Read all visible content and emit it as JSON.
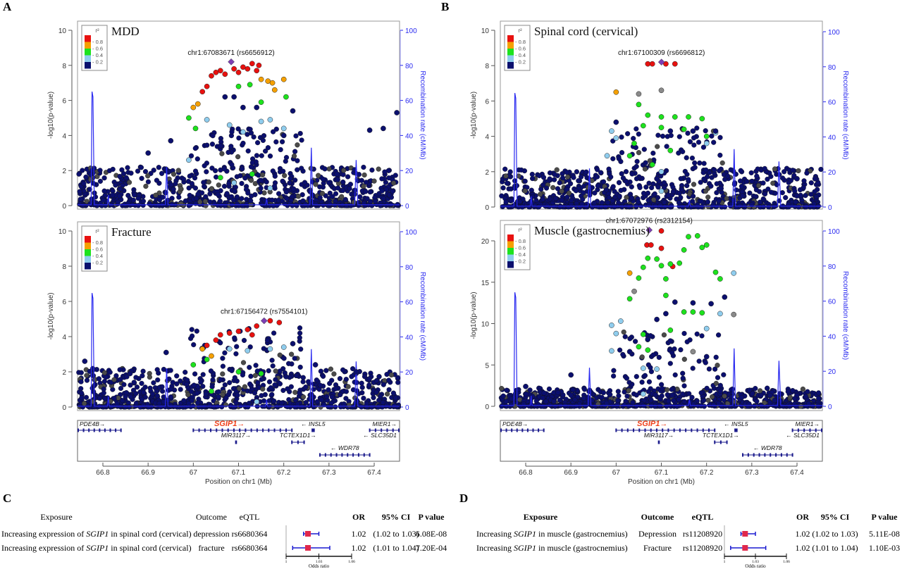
{
  "panel_letters": [
    "A",
    "B",
    "C",
    "D"
  ],
  "colors": {
    "r2_0.8-1": "#e8110f",
    "r2_0.6-0.8": "#f5a000",
    "r2_0.4-0.6": "#1de21d",
    "r2_0.2-0.4": "#8fcdee",
    "r2_0-0.2": "#0b0f6e",
    "r2_na": "#8a8a8a",
    "lead": "#7d3fb5",
    "recombination": "#2a2af0",
    "forest_box": "#e0284c",
    "forest_ci": "#1a1ad0",
    "gene": "#1b1b8c",
    "highlight_gene": "#f0401a"
  },
  "shared_axes": {
    "xlabel": "Position on chr1 (Mb)",
    "xticks": [
      "66.8",
      "66.9",
      "67",
      "67.1",
      "67.2",
      "67.3",
      "67.4"
    ],
    "xlim": [
      66.744,
      67.456
    ],
    "ylabel": "-log10(p-value)",
    "y2label": "Recombination rate (cM/Mb)",
    "y2ticks": [
      "0",
      "20",
      "40",
      "60",
      "80",
      "100"
    ],
    "legend_title": "r²",
    "legend_ticks": [
      "0.8",
      "0.6",
      "0.4",
      "0.2"
    ]
  },
  "gene_track": {
    "genes": [
      {
        "name": "PDE4B",
        "start": 66.744,
        "end": 66.84,
        "dir": "right",
        "row": 1,
        "highlight": false
      },
      {
        "name": "SGIP1",
        "start": 67.0,
        "end": 67.218,
        "dir": "right",
        "row": 1,
        "highlight": true
      },
      {
        "name": "INSL5",
        "start": 67.263,
        "end": 67.267,
        "dir": "left",
        "row": 1,
        "highlight": false
      },
      {
        "name": "MIER1",
        "start": 67.39,
        "end": 67.456,
        "dir": "right",
        "row": 1,
        "highlight": false
      },
      {
        "name": "MIR3117",
        "start": 67.094,
        "end": 67.095,
        "dir": "right",
        "row": 2,
        "highlight": false
      },
      {
        "name": "TCTEX1D1",
        "start": 67.218,
        "end": 67.245,
        "dir": "right",
        "row": 2,
        "highlight": false
      },
      {
        "name": "SLC35D1",
        "start": 67.456,
        "end": 67.456,
        "dir": "left",
        "row": 2,
        "highlight": false
      },
      {
        "name": "WDR78",
        "start": 67.28,
        "end": 67.39,
        "dir": "left",
        "row": 3,
        "highlight": false
      }
    ]
  },
  "chart_data": [
    {
      "type": "scatter",
      "panel": "A",
      "title": "MDD",
      "ylim": [
        0,
        10
      ],
      "yticks": [
        "0",
        "2",
        "4",
        "6",
        "8",
        "10"
      ],
      "y2lim": [
        0,
        100
      ],
      "lead_label": "chr1:67083671 (rs6656912)",
      "lead": [
        67.0837,
        8.2
      ],
      "points": [
        [
          67.04,
          7.4,
          "0.8-1"
        ],
        [
          67.05,
          7.6,
          "0.8-1"
        ],
        [
          67.06,
          7.7,
          "0.8-1"
        ],
        [
          67.07,
          7.5,
          "0.8-1"
        ],
        [
          67.09,
          7.8,
          "0.8-1"
        ],
        [
          67.1,
          7.6,
          "0.8-1"
        ],
        [
          67.11,
          7.9,
          "0.8-1"
        ],
        [
          67.12,
          7.8,
          "0.8-1"
        ],
        [
          67.13,
          8.1,
          "0.8-1"
        ],
        [
          67.14,
          7.7,
          "0.8-1"
        ],
        [
          67.145,
          8.0,
          "0.8-1"
        ],
        [
          67.02,
          6.5,
          "0.8-1"
        ],
        [
          67.03,
          6.8,
          "0.8-1"
        ],
        [
          67.15,
          7.2,
          "0.6-0.8"
        ],
        [
          67.165,
          7.1,
          "0.6-0.8"
        ],
        [
          67.175,
          7.0,
          "0.6-0.8"
        ],
        [
          67.2,
          7.2,
          "0.6-0.8"
        ],
        [
          67.18,
          6.6,
          "0.6-0.8"
        ],
        [
          67.0,
          5.6,
          "0.6-0.8"
        ],
        [
          67.01,
          5.8,
          "0.6-0.8"
        ],
        [
          66.99,
          5.0,
          "0.4-0.6"
        ],
        [
          67.005,
          4.4,
          "0.4-0.6"
        ],
        [
          67.1,
          6.8,
          "0.4-0.6"
        ],
        [
          67.125,
          6.9,
          "0.4-0.6"
        ],
        [
          67.15,
          5.9,
          "0.4-0.6"
        ],
        [
          67.205,
          6.2,
          "0.4-0.6"
        ],
        [
          67.06,
          1.6,
          "0.4-0.6"
        ],
        [
          67.13,
          1.8,
          "0.4-0.6"
        ],
        [
          67.03,
          4.9,
          "0.2-0.4"
        ],
        [
          67.08,
          4.6,
          "0.2-0.4"
        ],
        [
          67.11,
          4.2,
          "0.2-0.4"
        ],
        [
          67.15,
          4.8,
          "0.2-0.4"
        ],
        [
          67.17,
          4.9,
          "0.2-0.4"
        ],
        [
          67.2,
          4.4,
          "0.2-0.4"
        ],
        [
          66.99,
          2.6,
          "0.2-0.4"
        ],
        [
          67.09,
          1.3,
          "0.2-0.4"
        ],
        [
          67.17,
          1.0,
          "0.2-0.4"
        ],
        [
          67.07,
          6.2,
          "0-0.2"
        ],
        [
          67.09,
          6.2,
          "0-0.2"
        ],
        [
          67.11,
          5.6,
          "0-0.2"
        ],
        [
          67.14,
          5.6,
          "0-0.2"
        ],
        [
          67.22,
          5.4,
          "0-0.2"
        ],
        [
          66.95,
          3.7,
          "0-0.2"
        ],
        [
          66.9,
          3.0,
          "0-0.2"
        ],
        [
          67.39,
          4.3,
          "0-0.2"
        ],
        [
          67.42,
          4.4,
          "0-0.2"
        ],
        [
          67.45,
          5.3,
          "0-0.2"
        ],
        [
          67.2,
          4.0,
          "0-0.2"
        ]
      ]
    },
    {
      "type": "scatter",
      "panel": "A",
      "title": "Fracture",
      "ylim": [
        0,
        10
      ],
      "yticks": [
        "0",
        "2",
        "4",
        "6",
        "8",
        "10"
      ],
      "y2lim": [
        0,
        100
      ],
      "lead_label": "chr1:67156472 (rs7554101)",
      "lead": [
        67.1565,
        4.9
      ],
      "points": [
        [
          67.06,
          4.1,
          "0.8-1"
        ],
        [
          67.08,
          4.2,
          "0.8-1"
        ],
        [
          67.1,
          4.3,
          "0.8-1"
        ],
        [
          67.12,
          4.4,
          "0.8-1"
        ],
        [
          67.14,
          4.6,
          "0.8-1"
        ],
        [
          67.17,
          4.9,
          "0.8-1"
        ],
        [
          67.19,
          4.8,
          "0.8-1"
        ],
        [
          67.05,
          3.8,
          "0.8-1"
        ],
        [
          67.03,
          3.5,
          "0.8-1"
        ],
        [
          67.13,
          4.1,
          "0.8-1"
        ],
        [
          67.02,
          3.3,
          "0.6-0.8"
        ],
        [
          67.04,
          2.9,
          "0.6-0.8"
        ],
        [
          67.0,
          2.4,
          "0.4-0.6"
        ],
        [
          67.03,
          2.7,
          "0.4-0.6"
        ],
        [
          67.1,
          2.0,
          "0.4-0.6"
        ],
        [
          67.15,
          1.9,
          "0.4-0.6"
        ],
        [
          67.04,
          0.9,
          "0.4-0.6"
        ],
        [
          67.08,
          3.3,
          "0.2-0.4"
        ],
        [
          67.12,
          3.2,
          "0.2-0.4"
        ],
        [
          67.17,
          3.3,
          "0.2-0.4"
        ],
        [
          67.2,
          3.4,
          "0.2-0.4"
        ],
        [
          67.14,
          0.3,
          "0.2-0.4"
        ],
        [
          66.94,
          3.1,
          "0-0.2"
        ],
        [
          66.76,
          2.6,
          "0-0.2"
        ],
        [
          67.22,
          3.6,
          "0-0.2"
        ],
        [
          67.27,
          2.4,
          "0-0.2"
        ],
        [
          67.36,
          2.0,
          "0-0.2"
        ],
        [
          66.86,
          1.9,
          "0-0.2"
        ]
      ]
    },
    {
      "type": "scatter",
      "panel": "B",
      "title": "Spinal cord (cervical)",
      "ylim": [
        0,
        10
      ],
      "yticks": [
        "0",
        "2",
        "4",
        "6",
        "8",
        "10"
      ],
      "y2lim": [
        0,
        100
      ],
      "lead_label": "chr1:67100309 (rs6696812)",
      "lead": [
        67.1003,
        8.2
      ],
      "points": [
        [
          67.07,
          8.1,
          "0.8-1"
        ],
        [
          67.08,
          8.1,
          "0.8-1"
        ],
        [
          67.11,
          8.1,
          "0.8-1"
        ],
        [
          67.13,
          8.1,
          "0.8-1"
        ],
        [
          67.0,
          6.5,
          "0.6-0.8"
        ],
        [
          67.05,
          5.8,
          "0.4-0.6"
        ],
        [
          67.07,
          5.2,
          "0.4-0.6"
        ],
        [
          67.1,
          5.1,
          "0.4-0.6"
        ],
        [
          67.13,
          5.1,
          "0.4-0.6"
        ],
        [
          67.16,
          5.1,
          "0.4-0.6"
        ],
        [
          67.19,
          5.0,
          "0.4-0.6"
        ],
        [
          67.06,
          4.6,
          "0.4-0.6"
        ],
        [
          67.1,
          4.5,
          "0.4-0.6"
        ],
        [
          67.15,
          4.4,
          "0.4-0.6"
        ],
        [
          67.2,
          4.0,
          "0.4-0.6"
        ],
        [
          67.04,
          3.6,
          "0.4-0.6"
        ],
        [
          67.12,
          3.2,
          "0.4-0.6"
        ],
        [
          67.03,
          2.9,
          "0.4-0.6"
        ],
        [
          67.08,
          2.4,
          "0.4-0.6"
        ],
        [
          66.99,
          4.3,
          "0.2-0.4"
        ],
        [
          67.0,
          3.9,
          "0.2-0.4"
        ],
        [
          66.98,
          2.9,
          "0.2-0.4"
        ],
        [
          67.1,
          2.0,
          "0.2-0.4"
        ],
        [
          67.2,
          3.6,
          "0.2-0.4"
        ],
        [
          67.22,
          4.2,
          "0.2-0.4"
        ],
        [
          67.1,
          0.9,
          "0.2-0.4"
        ],
        [
          67.05,
          6.4,
          "na"
        ],
        [
          67.1,
          6.6,
          "na"
        ],
        [
          67.12,
          4.3,
          "0-0.2"
        ],
        [
          67.17,
          4.3,
          "0-0.2"
        ],
        [
          67.22,
          4.3,
          "0-0.2"
        ],
        [
          67.0,
          4.8,
          "0-0.2"
        ],
        [
          67.09,
          1.6,
          "0-0.2"
        ],
        [
          67.4,
          1.6,
          "0-0.2"
        ],
        [
          67.44,
          1.6,
          "0-0.2"
        ]
      ]
    },
    {
      "type": "scatter",
      "panel": "B",
      "title": "Muscle (gastrocnemius)",
      "ylim": [
        0,
        22
      ],
      "yticks": [
        "0",
        "5",
        "10",
        "15",
        "20"
      ],
      "y2lim": [
        0,
        100
      ],
      "lead_label": "chr1:67072976 (rs2312154)",
      "lead": [
        67.073,
        21.3
      ],
      "points": [
        [
          67.1,
          21.2,
          "0.8-1"
        ],
        [
          67.068,
          19.5,
          "0.8-1"
        ],
        [
          67.077,
          19.5,
          "0.8-1"
        ],
        [
          67.1,
          19.1,
          "0.8-1"
        ],
        [
          67.125,
          16.9,
          "0.8-1"
        ],
        [
          67.03,
          16.1,
          "0.6-0.8"
        ],
        [
          67.16,
          20.5,
          "0.4-0.6"
        ],
        [
          67.18,
          20.6,
          "0.4-0.6"
        ],
        [
          67.2,
          19.5,
          "0.4-0.6"
        ],
        [
          67.19,
          19.2,
          "0.4-0.6"
        ],
        [
          67.15,
          18.9,
          "0.4-0.6"
        ],
        [
          67.07,
          17.9,
          "0.4-0.6"
        ],
        [
          67.09,
          17.8,
          "0.4-0.6"
        ],
        [
          67.06,
          16.8,
          "0.4-0.6"
        ],
        [
          67.1,
          17.0,
          "0.4-0.6"
        ],
        [
          67.12,
          17.2,
          "0.4-0.6"
        ],
        [
          67.14,
          17.3,
          "0.4-0.6"
        ],
        [
          67.05,
          15.5,
          "0.4-0.6"
        ],
        [
          67.11,
          15.4,
          "0.4-0.6"
        ],
        [
          67.22,
          16.2,
          "0.4-0.6"
        ],
        [
          67.23,
          15.4,
          "0.4-0.6"
        ],
        [
          67.03,
          13.0,
          "0.4-0.6"
        ],
        [
          67.11,
          13.4,
          "0.4-0.6"
        ],
        [
          67.15,
          11.4,
          "0.4-0.6"
        ],
        [
          67.17,
          11.4,
          "0.4-0.6"
        ],
        [
          67.19,
          11.3,
          "0.4-0.6"
        ],
        [
          67.06,
          8.7,
          "0.4-0.6"
        ],
        [
          67.12,
          9.2,
          "0.4-0.6"
        ],
        [
          67.05,
          7.2,
          "0.4-0.6"
        ],
        [
          67.07,
          6.8,
          "0.4-0.6"
        ],
        [
          66.99,
          9.8,
          "0.2-0.4"
        ],
        [
          67.01,
          10.3,
          "0.2-0.4"
        ],
        [
          67.0,
          8.8,
          "0.2-0.4"
        ],
        [
          66.99,
          6.7,
          "0.2-0.4"
        ],
        [
          67.06,
          4.6,
          "0.2-0.4"
        ],
        [
          67.09,
          4.5,
          "0.2-0.4"
        ],
        [
          67.2,
          9.4,
          "0.2-0.4"
        ],
        [
          67.23,
          11.2,
          "0.2-0.4"
        ],
        [
          67.26,
          16.1,
          "0.2-0.4"
        ],
        [
          67.06,
          1.5,
          "0.2-0.4"
        ],
        [
          67.04,
          13.9,
          "na"
        ],
        [
          67.26,
          11.1,
          "na"
        ],
        [
          67.17,
          6.6,
          "na"
        ],
        [
          67.13,
          12.6,
          "0-0.2"
        ],
        [
          67.17,
          12.5,
          "0-0.2"
        ],
        [
          67.21,
          12.4,
          "0-0.2"
        ],
        [
          67.24,
          13.2,
          "0-0.2"
        ],
        [
          67.11,
          11.2,
          "0-0.2"
        ],
        [
          67.09,
          10.5,
          "0-0.2"
        ],
        [
          67.07,
          8.1,
          "0-0.2"
        ],
        [
          67.12,
          7.9,
          "0-0.2"
        ],
        [
          67.03,
          6.6,
          "0-0.2"
        ],
        [
          67.2,
          6.0,
          "0-0.2"
        ],
        [
          66.9,
          3.8,
          "0-0.2"
        ],
        [
          66.8,
          2.4,
          "0-0.2"
        ]
      ]
    },
    {
      "type": "table",
      "panel": "C",
      "headers": [
        "Exposure",
        "Outcome",
        "eQTL",
        "OR",
        "95% CI",
        "P value"
      ],
      "rows": [
        {
          "exposure_pre": "Increasing expression of ",
          "gene": "SGIP1",
          "exposure_post": " in spinal cord (cervical)",
          "outcome": "depression",
          "eqtl": "rs6680364",
          "or": 1.02,
          "or_text": "1.02",
          "ci": [
            1.02,
            1.03
          ],
          "ci_text": "(1.02 to 1.03)",
          "p": "6.08E-08"
        },
        {
          "exposure_pre": "Increasing expression of ",
          "gene": "SGIP1",
          "exposure_post": " in spinal cord (cervical)",
          "outcome": "fracture",
          "eqtl": "rs6680364",
          "or": 1.02,
          "or_text": "1.02",
          "ci": [
            1.01,
            1.04
          ],
          "ci_text": "(1.01 to 1.04)",
          "p": "7.20E-04"
        }
      ],
      "xaxis": {
        "label": "Odds ratio",
        "ticks": [
          "1",
          "1.03",
          "1.06"
        ],
        "xlim": [
          1,
          1.06
        ]
      }
    },
    {
      "type": "table",
      "panel": "D",
      "headers": [
        "Exposure",
        "Outcome",
        "eQTL",
        "OR",
        "95% CI",
        "P value"
      ],
      "rows": [
        {
          "exposure_pre": "Increasing ",
          "gene": "SGIP1",
          "exposure_post": " in muscle (gastrocnemius)",
          "outcome": "Depression",
          "eqtl": "rs11208920",
          "or": 1.02,
          "or_text": "1.02",
          "ci": [
            1.02,
            1.03
          ],
          "ci_text": "(1.02 to 1.03)",
          "p": "5.11E-08"
        },
        {
          "exposure_pre": "Increasing ",
          "gene": "SGIP1",
          "exposure_post": " in muscle (gastrocnemius)",
          "outcome": "Fracture",
          "eqtl": "rs11208920",
          "or": 1.02,
          "or_text": "1.02",
          "ci": [
            1.01,
            1.04
          ],
          "ci_text": "(1.01 to 1.04)",
          "p": "1.10E-03"
        }
      ],
      "xaxis": {
        "label": "Odds ratio",
        "ticks": [
          "1",
          "1.03",
          "1.06"
        ],
        "xlim": [
          1,
          1.06
        ]
      }
    }
  ]
}
